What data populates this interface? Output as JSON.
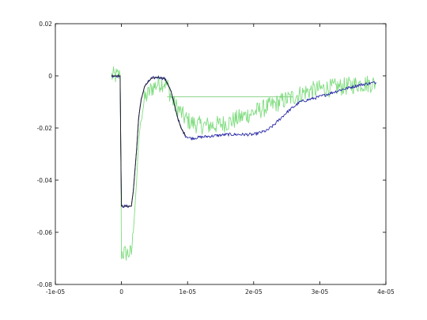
{
  "chart_data": {
    "type": "line",
    "title": "",
    "xlabel": "",
    "ylabel": "",
    "xlim": [
      -1e-05,
      4e-05
    ],
    "ylim": [
      -0.08,
      0.02
    ],
    "grid": false,
    "legend": "none",
    "x_ticks": [
      {
        "value": -1e-05,
        "label": "-1e-05"
      },
      {
        "value": 0,
        "label": "0"
      },
      {
        "value": 1e-05,
        "label": "1e-05"
      },
      {
        "value": 2e-05,
        "label": "2e-05"
      },
      {
        "value": 3e-05,
        "label": "3e-05"
      },
      {
        "value": 4e-05,
        "label": "4e-05"
      }
    ],
    "y_ticks": [
      {
        "value": 0.02,
        "label": "0.02"
      },
      {
        "value": 0,
        "label": "0"
      },
      {
        "value": -0.02,
        "label": "-0.02"
      },
      {
        "value": -0.04,
        "label": "-0.04"
      },
      {
        "value": -0.06,
        "label": "-0.06"
      },
      {
        "value": -0.08,
        "label": "-0.08"
      }
    ],
    "series": [
      {
        "color": "#7fdc7f",
        "noise": 0.0035,
        "x": [
          -1.5e-06,
          -2e-07,
          -1e-07,
          0,
          1.5e-06,
          1.8e-06,
          2.3e-06,
          2.6e-06,
          3e-06,
          3.5e-06,
          4.5e-06,
          5.5e-06,
          6.5e-06,
          7e-06,
          7.5e-06,
          8e-06,
          8.7e-06,
          9.5e-06,
          1.05e-05,
          1.2e-05,
          1.4e-05,
          1.6e-05,
          1.8e-05,
          2e-05,
          2.2e-05,
          2.4e-05,
          2.6e-05,
          2.8e-05,
          3e-05,
          3.2e-05,
          3.4e-05,
          3.6e-05,
          3.85e-05
        ],
        "y": [
          0,
          0,
          -0.03,
          -0.068,
          -0.068,
          -0.06,
          -0.04,
          -0.025,
          -0.015,
          -0.009,
          -0.005,
          -0.003,
          -0.0025,
          -0.004,
          -0.008,
          -0.011,
          -0.013,
          -0.016,
          -0.018,
          -0.019,
          -0.019,
          -0.018,
          -0.016,
          -0.014,
          -0.012,
          -0.01,
          -0.008,
          -0.006,
          -0.005,
          -0.0045,
          -0.004,
          -0.003,
          -0.003
        ]
      },
      {
        "color": "#80d080",
        "noise": 0,
        "x": [
          6.9e-06,
          2.6e-05
        ],
        "y": [
          -0.008,
          -0.008
        ]
      },
      {
        "color": "#2c2ca8",
        "noise": 0.0006,
        "x": [
          -1.5e-06,
          -2e-07,
          -1e-07,
          0,
          1.5e-06,
          1.8e-06,
          2.3e-06,
          2.6e-06,
          3e-06,
          3.5e-06,
          4.5e-06,
          5.5e-06,
          6.5e-06,
          7e-06,
          7.5e-06,
          8e-06,
          8.5e-06,
          9e-06,
          9.7e-06,
          1.05e-05,
          1.2e-05,
          1.4e-05,
          1.6e-05,
          1.8e-05,
          2e-05,
          2.2e-05,
          2.3e-05,
          2.5e-05,
          2.7e-05,
          3e-05,
          3.3e-05,
          3.6e-05,
          3.85e-05
        ],
        "y": [
          0,
          0,
          -0.028,
          -0.05,
          -0.05,
          -0.044,
          -0.028,
          -0.016,
          -0.009,
          -0.004,
          -0.001,
          -0.0005,
          -0.001,
          -0.003,
          -0.006,
          -0.011,
          -0.016,
          -0.02,
          -0.023,
          -0.024,
          -0.0235,
          -0.023,
          -0.0225,
          -0.0225,
          -0.0225,
          -0.021,
          -0.019,
          -0.014,
          -0.01,
          -0.008,
          -0.0055,
          -0.0035,
          -0.0025
        ]
      },
      {
        "color": "#1e1e1e",
        "noise": 0,
        "x": [
          -1.5e-06,
          -2e-07,
          -1e-07,
          0,
          1.5e-06,
          1.8e-06,
          2.3e-06,
          2.6e-06,
          3e-06,
          3.5e-06,
          4.5e-06,
          5.5e-06,
          6.5e-06,
          7e-06,
          7.5e-06,
          8e-06,
          8.5e-06,
          9e-06,
          9.7e-06
        ],
        "y": [
          0,
          0,
          -0.028,
          -0.05,
          -0.05,
          -0.044,
          -0.028,
          -0.016,
          -0.009,
          -0.004,
          -0.001,
          -0.0005,
          -0.001,
          -0.003,
          -0.006,
          -0.011,
          -0.016,
          -0.02,
          -0.023
        ]
      }
    ]
  }
}
